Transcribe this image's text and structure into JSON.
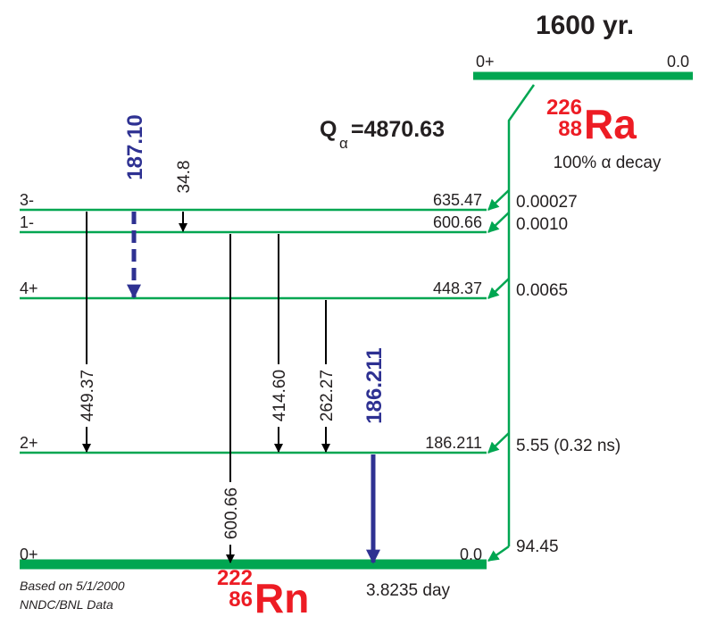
{
  "parent": {
    "half_life": "1600 yr.",
    "spin": "0+",
    "energy": "0.0",
    "mass_number": "226",
    "atomic_number": "88",
    "symbol": "Ra",
    "decay_mode": "100% α decay"
  },
  "q_value": {
    "symbol": "Q",
    "subscript": "α",
    "text": "=4870.63"
  },
  "levels": [
    {
      "spin": "3-",
      "energy": "635.47",
      "intensity": "0.00027"
    },
    {
      "spin": "1-",
      "energy": "600.66",
      "intensity": "0.0010"
    },
    {
      "spin": "4+",
      "energy": "448.37",
      "intensity": "0.0065"
    },
    {
      "spin": "2+",
      "energy": "186.211",
      "intensity": "5.55 (0.32 ns)"
    },
    {
      "spin": "0+",
      "energy": "0.0",
      "intensity": "94.45"
    }
  ],
  "gammas": [
    {
      "energy": "187.10"
    },
    {
      "energy": "34.8"
    },
    {
      "energy": "449.37"
    },
    {
      "energy": "600.66"
    },
    {
      "energy": "414.60"
    },
    {
      "energy": "262.27"
    },
    {
      "energy": "186.211"
    }
  ],
  "daughter": {
    "mass_number": "222",
    "atomic_number": "86",
    "symbol": "Rn",
    "half_life": "3.8235 day"
  },
  "source": [
    "Based on 5/1/2000",
    "NNDC/BNL Data"
  ]
}
